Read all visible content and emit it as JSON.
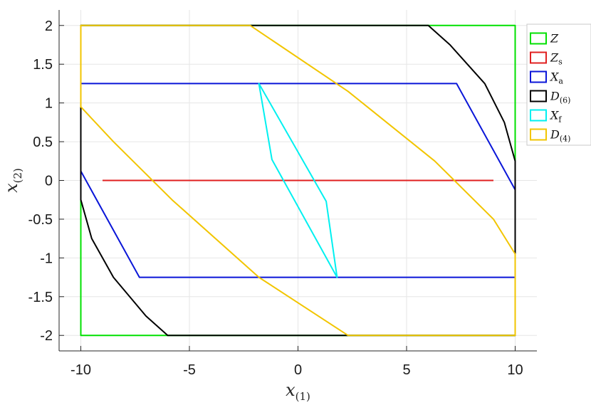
{
  "chart_data": {
    "type": "line",
    "title": "",
    "xlabel": {
      "main": "x",
      "sub": "(1)"
    },
    "ylabel": {
      "main": "x",
      "sub": "(2)"
    },
    "xlim": [
      -11,
      11
    ],
    "ylim": [
      -2.2,
      2.2
    ],
    "xticks": [
      -10,
      -5,
      0,
      5,
      10
    ],
    "xtick_labels": [
      "-10",
      "-5",
      "0",
      "5",
      "10"
    ],
    "yticks": [
      -2,
      -1.5,
      -1,
      -0.5,
      0,
      0.5,
      1,
      1.5,
      2
    ],
    "ytick_labels": [
      "-2",
      "-1.5",
      "-1",
      "-0.5",
      "0",
      "0.5",
      "1",
      "1.5",
      "2"
    ],
    "grid": true,
    "legend_position": "top-right",
    "series": [
      {
        "id": "Z",
        "legend_main": "Z",
        "legend_sub": "",
        "color": "#00e000",
        "closed": true,
        "points": [
          [
            -10,
            -2
          ],
          [
            10,
            -2
          ],
          [
            10,
            2
          ],
          [
            -10,
            2
          ]
        ]
      },
      {
        "id": "Zs",
        "legend_main": "Z",
        "legend_sub": "s",
        "color": "#e02020",
        "closed": false,
        "points": [
          [
            -9,
            0
          ],
          [
            9,
            0
          ]
        ]
      },
      {
        "id": "Xa",
        "legend_main": "X",
        "legend_sub": "a",
        "color": "#0a16d8",
        "closed": true,
        "points": [
          [
            -10,
            1.25
          ],
          [
            7.3,
            1.25
          ],
          [
            10,
            -0.12
          ],
          [
            10,
            -1.25
          ],
          [
            -7.3,
            -1.25
          ],
          [
            -10,
            0.12
          ]
        ]
      },
      {
        "id": "D6",
        "legend_main": "D",
        "legend_sub": "(6)",
        "color": "#000000",
        "closed": true,
        "points": [
          [
            -10,
            0.95
          ],
          [
            -10,
            -0.25
          ],
          [
            -9.5,
            -0.75
          ],
          [
            -8.5,
            -1.25
          ],
          [
            -7.0,
            -1.75
          ],
          [
            -6.0,
            -2.0
          ],
          [
            2.3,
            -2.0
          ],
          [
            10,
            -2.0
          ],
          [
            10,
            -0.95
          ],
          [
            10,
            0.25
          ],
          [
            9.5,
            0.75
          ],
          [
            8.6,
            1.25
          ],
          [
            7.0,
            1.75
          ],
          [
            6.0,
            2.0
          ],
          [
            -2.2,
            2.0
          ],
          [
            -10,
            2.0
          ]
        ]
      },
      {
        "id": "Xf",
        "legend_main": "X",
        "legend_sub": "f",
        "color": "#00f0f0",
        "closed": true,
        "points": [
          [
            -1.8,
            1.25
          ],
          [
            -1.2,
            0.27
          ],
          [
            1.8,
            -1.25
          ],
          [
            1.3,
            -0.27
          ]
        ]
      },
      {
        "id": "D4",
        "legend_main": "D",
        "legend_sub": "(4)",
        "color": "#f2c500",
        "closed": true,
        "points": [
          [
            -2.2,
            2.0
          ],
          [
            2.3,
            1.15
          ],
          [
            6.3,
            0.25
          ],
          [
            9.0,
            -0.5
          ],
          [
            10,
            -0.95
          ],
          [
            10,
            -2.0
          ],
          [
            2.3,
            -2.0
          ],
          [
            -1.8,
            -1.25
          ],
          [
            -5.8,
            -0.25
          ],
          [
            -8.5,
            0.5
          ],
          [
            -10,
            0.95
          ],
          [
            -10,
            2.0
          ]
        ]
      }
    ]
  }
}
